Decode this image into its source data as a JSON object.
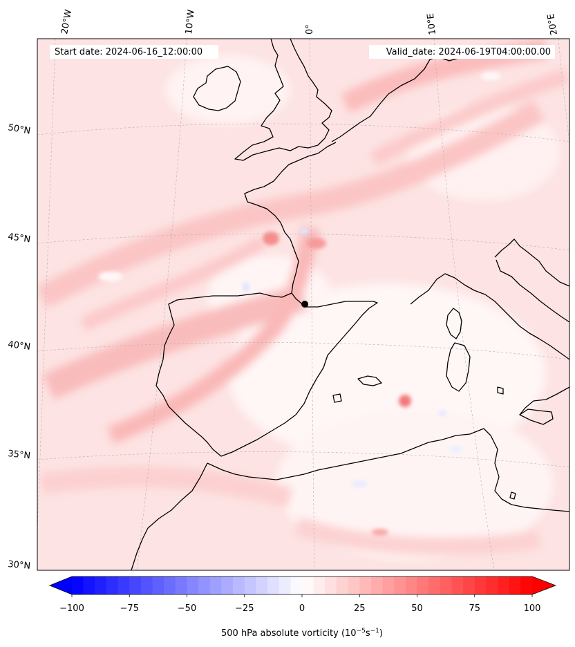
{
  "header": {
    "start_date": "Start date: 2024-06-16_12:00:00",
    "valid_date": "Valid_date: 2024-06-19T04:00:00.00"
  },
  "map": {
    "projection": "Lambert conformal, Western Europe / Western Mediterranean",
    "longitude_labels": [
      "20°W",
      "10°W",
      "0°",
      "10°E",
      "20°E"
    ],
    "latitude_labels": [
      "50°N",
      "45°N",
      "40°N",
      "35°N",
      "30°N"
    ],
    "field": "500 hPa absolute vorticity",
    "marker_label": "",
    "colors": {
      "coast": "#000000",
      "grid": "#b0b0b0",
      "background": "#fde4e4"
    }
  },
  "colorbar": {
    "ticks": [
      "−100",
      "−75",
      "−50",
      "−25",
      "0",
      "25",
      "50",
      "75",
      "100"
    ],
    "min": -100,
    "max": 100,
    "levels": 40,
    "label_prefix": "500 hPa absolute vorticity (10",
    "label_exp1": "−5",
    "label_mid": "s",
    "label_exp2": "−1",
    "label_suffix": ")",
    "low_color": "#0000ff",
    "high_color": "#ff0000"
  }
}
